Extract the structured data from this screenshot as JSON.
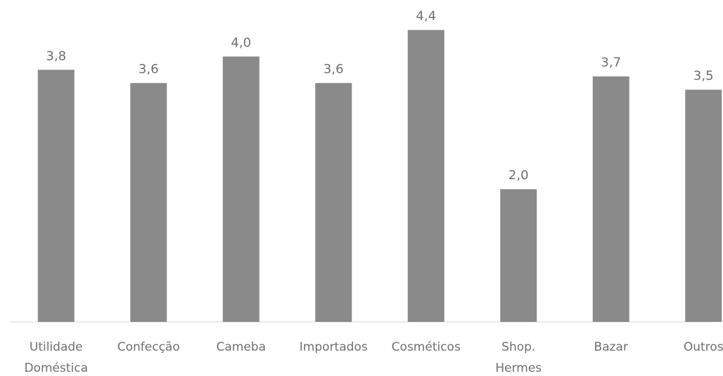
{
  "chart_data": {
    "type": "bar",
    "categories": [
      [
        "Utilidade",
        "Doméstica"
      ],
      [
        "Confecção"
      ],
      [
        "Cameba"
      ],
      [
        "Importados"
      ],
      [
        "Cosméticos"
      ],
      [
        "Shop.",
        "Hermes"
      ],
      [
        "Bazar"
      ],
      [
        "Outros"
      ]
    ],
    "values": [
      3.8,
      3.6,
      4.0,
      3.6,
      4.4,
      2.0,
      3.7,
      3.5
    ],
    "value_labels": [
      "3,8",
      "3,6",
      "4,0",
      "3,6",
      "4,4",
      "2,0",
      "3,7",
      "3,5"
    ],
    "ylim": [
      0,
      5
    ],
    "grid": false,
    "legend": "none",
    "bar_color": "#8a8a8a",
    "label_color": "#6f6f6f"
  }
}
